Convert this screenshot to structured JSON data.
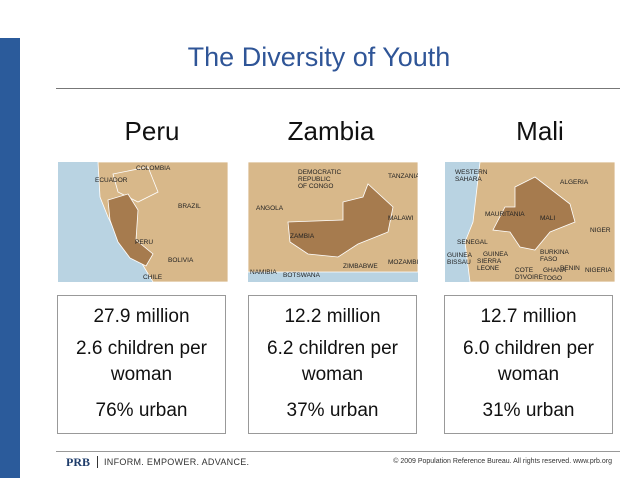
{
  "header": {
    "title": "The Diversity of Youth"
  },
  "countries": [
    {
      "name": "Peru",
      "stats": [
        "27.9 million",
        "2.6 children per woman",
        "76% urban"
      ],
      "map_labels": [
        [
          "COLOMBIA"
        ],
        [
          "ECUADOR"
        ],
        [
          "BRAZIL"
        ],
        [
          "PERU"
        ],
        [
          "BOLIVIA"
        ],
        [
          "CHILE"
        ]
      ]
    },
    {
      "name": "Zambia",
      "stats": [
        "12.2 million",
        "6.2 children per woman",
        "37% urban"
      ],
      "map_labels": [
        [
          "DEMOCRATIC",
          "REPUBLIC",
          "OF CONGO"
        ],
        [
          "TANZANIA"
        ],
        [
          "ANGOLA"
        ],
        [
          "MALAWI"
        ],
        [
          "ZAMBIA"
        ],
        [
          "MOZAMBIQUE"
        ],
        [
          "ZIMBABWE"
        ],
        [
          "NAMIBIA"
        ],
        [
          "BOTSWANA"
        ]
      ]
    },
    {
      "name": "Mali",
      "stats": [
        "12.7 million",
        "6.0 children per woman",
        "31% urban"
      ],
      "map_labels": [
        [
          "WESTERN",
          "SAHARA"
        ],
        [
          "ALGERIA"
        ],
        [
          "MAURITANIA"
        ],
        [
          "MALI"
        ],
        [
          "NIGER"
        ],
        [
          "SENEGAL"
        ],
        [
          "GUINEA",
          "BISSAU"
        ],
        [
          "GUINEA"
        ],
        [
          "SIERRA",
          "LEONE"
        ],
        [
          "BURKINA",
          "FASO"
        ],
        [
          "COTE",
          "D'IVOIRE"
        ],
        [
          "GHANA"
        ],
        [
          "TOGO"
        ],
        [
          "BENIN"
        ],
        [
          "NIGERIA"
        ]
      ]
    }
  ],
  "footer": {
    "brand": "PRB",
    "tagline": "INFORM. EMPOWER. ADVANCE.",
    "copyright": "© 2009 Population Reference Bureau. All rights reserved. www.prb.org"
  }
}
